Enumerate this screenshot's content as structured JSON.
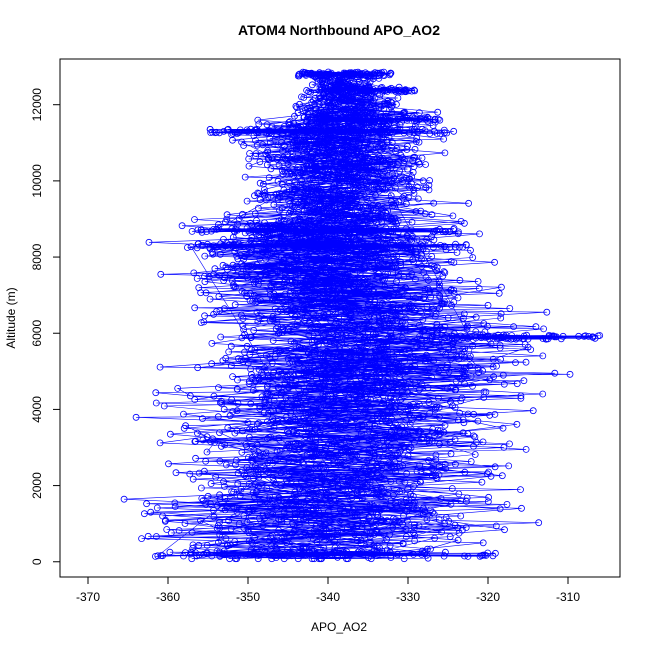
{
  "chart_data": {
    "type": "scatter",
    "title": "ATOM4 Northbound APO_AO2",
    "xlabel": "APO_AO2",
    "ylabel": "Altitude (m)",
    "xlim": [
      -373.5,
      -303.5
    ],
    "ylim": [
      -400,
      13200
    ],
    "xticks": [
      "-370",
      "-360",
      "-350",
      "-340",
      "-330",
      "-320",
      "-310"
    ],
    "xtick_values": [
      -370,
      -360,
      -350,
      -340,
      -330,
      -320,
      -310
    ],
    "yticks": [
      "0",
      "2000",
      "4000",
      "6000",
      "8000",
      "10000",
      "12000"
    ],
    "ytick_values": [
      0,
      2000,
      4000,
      6000,
      8000,
      10000,
      12000
    ],
    "grid": false,
    "legend": "none",
    "series": [
      {
        "color": "#0000ff",
        "marker": "open-circle",
        "line": true,
        "envelope": [
          {
            "alt": 100,
            "x_min": -367,
            "x_max": -318
          },
          {
            "alt": 1000,
            "x_min": -371,
            "x_max": -308
          },
          {
            "alt": 2000,
            "x_min": -369,
            "x_max": -309
          },
          {
            "alt": 3000,
            "x_min": -367,
            "x_max": -311
          },
          {
            "alt": 4000,
            "x_min": -368,
            "x_max": -306
          },
          {
            "alt": 5000,
            "x_min": -364,
            "x_max": -309
          },
          {
            "alt": 5900,
            "x_min": -363,
            "x_max": -305
          },
          {
            "alt": 7000,
            "x_min": -364,
            "x_max": -313
          },
          {
            "alt": 8000,
            "x_min": -363,
            "x_max": -316
          },
          {
            "alt": 8500,
            "x_min": -364,
            "x_max": -318
          },
          {
            "alt": 9400,
            "x_min": -356,
            "x_max": -321
          },
          {
            "alt": 10500,
            "x_min": -353,
            "x_max": -323
          },
          {
            "alt": 11300,
            "x_min": -356,
            "x_max": -323
          },
          {
            "alt": 12000,
            "x_min": -347,
            "x_max": -327
          },
          {
            "alt": 12800,
            "x_min": -344,
            "x_max": -332
          }
        ],
        "dense_levels": [
          {
            "alt": 200,
            "x_min": -362,
            "x_max": -319
          },
          {
            "alt": 8300,
            "x_min": -358,
            "x_max": -322
          },
          {
            "alt": 8700,
            "x_min": -357,
            "x_max": -323
          },
          {
            "alt": 11300,
            "x_min": -355,
            "x_max": -324
          },
          {
            "alt": 11600,
            "x_min": -343,
            "x_max": -325
          },
          {
            "alt": 12400,
            "x_min": -341,
            "x_max": -329
          },
          {
            "alt": 12800,
            "x_min": -344,
            "x_max": -332
          },
          {
            "alt": 5900,
            "x_min": -325,
            "x_max": -305
          }
        ]
      }
    ]
  }
}
